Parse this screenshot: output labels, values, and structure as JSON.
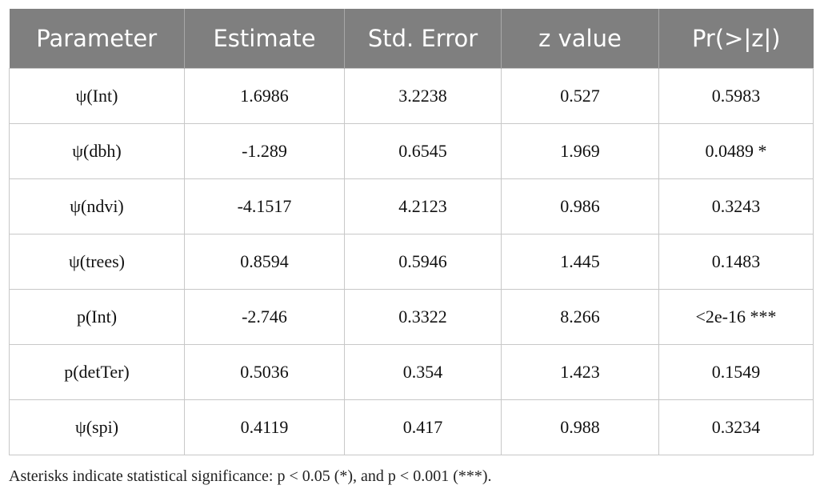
{
  "table": {
    "header": [
      "Parameter",
      "Estimate",
      "Std. Error",
      "z value",
      "Pr(>|z|)"
    ],
    "rows": [
      [
        "ψ(Int)",
        "1.6986",
        "3.2238",
        "0.527",
        "0.5983"
      ],
      [
        "ψ(dbh)",
        "-1.289",
        "0.6545",
        "1.969",
        "0.0489 *"
      ],
      [
        "ψ(ndvi)",
        "-4.1517",
        "4.2123",
        "0.986",
        "0.3243"
      ],
      [
        "ψ(trees)",
        "0.8594",
        "0.5946",
        "1.445",
        "0.1483"
      ],
      [
        "p(Int)",
        "-2.746",
        "0.3322",
        "8.266",
        "<2e-16 ***"
      ],
      [
        "p(detTer)",
        "0.5036",
        "0.354",
        "1.423",
        "0.1549"
      ],
      [
        "ψ(spi)",
        "0.4119",
        "0.417",
        "0.988",
        "0.3234"
      ]
    ],
    "footnote": "Asterisks indicate statistical significance: p < 0.05 (*), and p < 0.001 (***)."
  }
}
